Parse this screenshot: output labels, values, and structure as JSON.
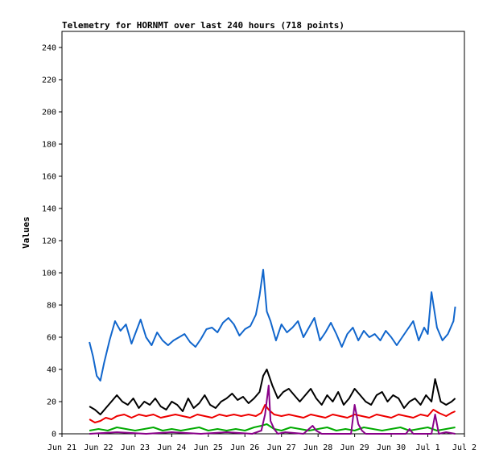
{
  "chart_data": {
    "type": "line",
    "title": "Telemetry for HORNMT over last 240 hours (718 points)",
    "ylabel": "Values",
    "xlabel": "",
    "ylim": [
      0,
      250
    ],
    "xlim": [
      0,
      11
    ],
    "grid": false,
    "legend": "none",
    "y_ticks": [
      0,
      20,
      40,
      60,
      80,
      100,
      120,
      140,
      160,
      180,
      200,
      220,
      240
    ],
    "x_ticks": [
      {
        "x": 0,
        "label": "Jun 21"
      },
      {
        "x": 1,
        "label": "Jun 22"
      },
      {
        "x": 2,
        "label": "Jun 23"
      },
      {
        "x": 3,
        "label": "Jun 24"
      },
      {
        "x": 4,
        "label": "Jun 25"
      },
      {
        "x": 5,
        "label": "Jun 26"
      },
      {
        "x": 6,
        "label": "Jun 27"
      },
      {
        "x": 7,
        "label": "Jun 28"
      },
      {
        "x": 8,
        "label": "Jun 29"
      },
      {
        "x": 9,
        "label": "Jun 30"
      },
      {
        "x": 10,
        "label": "Jul 1"
      },
      {
        "x": 11,
        "label": "Jul 2"
      }
    ],
    "series": [
      {
        "color": "#1166cc",
        "x": [
          0.75,
          0.85,
          0.95,
          1.05,
          1.15,
          1.3,
          1.45,
          1.6,
          1.75,
          1.9,
          2.0,
          2.15,
          2.3,
          2.45,
          2.6,
          2.75,
          2.9,
          3.05,
          3.2,
          3.35,
          3.5,
          3.65,
          3.8,
          3.95,
          4.1,
          4.25,
          4.4,
          4.55,
          4.7,
          4.85,
          5.0,
          5.15,
          5.3,
          5.4,
          5.5,
          5.6,
          5.7,
          5.85,
          6.0,
          6.15,
          6.3,
          6.45,
          6.6,
          6.75,
          6.9,
          7.05,
          7.2,
          7.35,
          7.5,
          7.65,
          7.8,
          7.95,
          8.1,
          8.25,
          8.4,
          8.55,
          8.7,
          8.85,
          9.0,
          9.15,
          9.3,
          9.45,
          9.6,
          9.75,
          9.9,
          10.0,
          10.1,
          10.25,
          10.4,
          10.55,
          10.7,
          10.75
        ],
        "y": [
          57,
          48,
          36,
          33,
          44,
          58,
          70,
          64,
          68,
          56,
          62,
          71,
          60,
          55,
          63,
          58,
          55,
          58,
          60,
          62,
          57,
          54,
          59,
          65,
          66,
          63,
          69,
          72,
          68,
          61,
          65,
          67,
          74,
          86,
          102,
          76,
          70,
          58,
          68,
          63,
          66,
          70,
          60,
          66,
          72,
          58,
          63,
          69,
          62,
          54,
          62,
          66,
          58,
          64,
          60,
          62,
          58,
          64,
          60,
          55,
          60,
          65,
          70,
          58,
          66,
          62,
          88,
          66,
          58,
          62,
          70,
          79
        ]
      },
      {
        "color": "#000000",
        "x": [
          0.75,
          0.9,
          1.05,
          1.2,
          1.35,
          1.5,
          1.65,
          1.8,
          1.95,
          2.1,
          2.25,
          2.4,
          2.55,
          2.7,
          2.85,
          3.0,
          3.15,
          3.3,
          3.45,
          3.6,
          3.75,
          3.9,
          4.05,
          4.2,
          4.35,
          4.5,
          4.65,
          4.8,
          4.95,
          5.1,
          5.25,
          5.4,
          5.5,
          5.6,
          5.75,
          5.9,
          6.05,
          6.2,
          6.35,
          6.5,
          6.65,
          6.8,
          6.95,
          7.1,
          7.25,
          7.4,
          7.55,
          7.7,
          7.85,
          8.0,
          8.15,
          8.3,
          8.45,
          8.6,
          8.75,
          8.9,
          9.05,
          9.2,
          9.35,
          9.5,
          9.65,
          9.8,
          9.95,
          10.1,
          10.2,
          10.35,
          10.5,
          10.65,
          10.75
        ],
        "y": [
          17,
          15,
          12,
          16,
          20,
          24,
          20,
          18,
          22,
          16,
          20,
          18,
          22,
          17,
          15,
          20,
          18,
          14,
          22,
          16,
          19,
          24,
          18,
          16,
          20,
          22,
          25,
          21,
          23,
          19,
          22,
          26,
          36,
          40,
          30,
          22,
          26,
          28,
          24,
          20,
          24,
          28,
          22,
          18,
          24,
          20,
          26,
          18,
          22,
          28,
          24,
          20,
          18,
          24,
          26,
          20,
          24,
          22,
          16,
          20,
          22,
          18,
          24,
          20,
          34,
          20,
          18,
          20,
          22
        ]
      },
      {
        "color": "#ee0000",
        "x": [
          0.75,
          0.9,
          1.05,
          1.2,
          1.35,
          1.5,
          1.7,
          1.9,
          2.1,
          2.3,
          2.5,
          2.7,
          2.9,
          3.1,
          3.3,
          3.5,
          3.7,
          3.9,
          4.1,
          4.3,
          4.5,
          4.7,
          4.9,
          5.1,
          5.3,
          5.45,
          5.55,
          5.65,
          5.8,
          6.0,
          6.2,
          6.4,
          6.6,
          6.8,
          7.0,
          7.2,
          7.4,
          7.6,
          7.8,
          8.0,
          8.2,
          8.4,
          8.6,
          8.8,
          9.0,
          9.2,
          9.4,
          9.6,
          9.8,
          10.0,
          10.15,
          10.3,
          10.5,
          10.65,
          10.75
        ],
        "y": [
          9,
          7,
          8,
          10,
          9,
          11,
          12,
          10,
          12,
          11,
          12,
          10,
          11,
          12,
          11,
          10,
          12,
          11,
          10,
          12,
          11,
          12,
          11,
          12,
          11,
          13,
          18,
          15,
          12,
          11,
          12,
          11,
          10,
          12,
          11,
          10,
          12,
          11,
          10,
          12,
          11,
          10,
          12,
          11,
          10,
          12,
          11,
          10,
          12,
          11,
          15,
          13,
          11,
          13,
          14
        ]
      },
      {
        "color": "#00aa00",
        "x": [
          0.75,
          1.0,
          1.25,
          1.5,
          1.75,
          2.0,
          2.25,
          2.5,
          2.75,
          3.0,
          3.25,
          3.5,
          3.75,
          4.0,
          4.25,
          4.5,
          4.75,
          5.0,
          5.25,
          5.45,
          5.6,
          5.8,
          6.0,
          6.25,
          6.5,
          6.75,
          7.0,
          7.25,
          7.5,
          7.75,
          8.0,
          8.25,
          8.5,
          8.75,
          9.0,
          9.25,
          9.5,
          9.75,
          10.0,
          10.25,
          10.5,
          10.75
        ],
        "y": [
          2,
          3,
          2,
          4,
          3,
          2,
          3,
          4,
          2,
          3,
          2,
          3,
          4,
          2,
          3,
          2,
          3,
          2,
          4,
          5,
          6,
          3,
          2,
          4,
          3,
          2,
          3,
          4,
          2,
          3,
          2,
          4,
          3,
          2,
          3,
          4,
          2,
          3,
          4,
          2,
          3,
          4
        ]
      },
      {
        "color": "#880088",
        "x": [
          0.75,
          1.5,
          2.3,
          3.0,
          3.8,
          4.5,
          5.2,
          5.45,
          5.55,
          5.65,
          5.7,
          5.8,
          5.9,
          6.1,
          6.6,
          6.85,
          6.95,
          7.1,
          7.9,
          8.0,
          8.1,
          8.2,
          8.3,
          9.4,
          9.5,
          9.6,
          10.1,
          10.2,
          10.3,
          10.5,
          10.75
        ],
        "y": [
          0,
          1,
          0,
          1,
          0,
          1,
          0,
          2,
          12,
          30,
          8,
          3,
          0,
          1,
          0,
          5,
          2,
          0,
          0,
          18,
          6,
          2,
          0,
          0,
          3,
          0,
          0,
          12,
          0,
          1,
          0
        ]
      }
    ]
  }
}
